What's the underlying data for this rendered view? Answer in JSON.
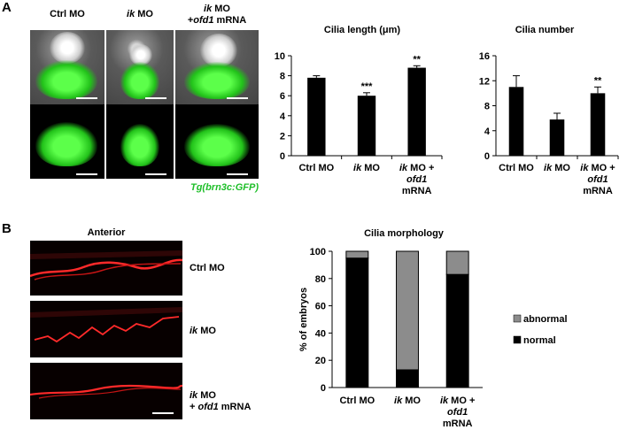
{
  "panel_a": {
    "letter": "A",
    "columns": [
      {
        "line1_italic": "",
        "line1_rest": "Ctrl MO",
        "line2_rest": "",
        "line2_italic": "",
        "line2_tail": ""
      },
      {
        "line1_italic": "ik",
        "line1_rest": " MO",
        "line2_rest": "",
        "line2_italic": "",
        "line2_tail": ""
      },
      {
        "line1_italic": "ik",
        "line1_rest": " MO",
        "line2_rest": "+",
        "line2_italic": "ofd1",
        "line2_tail": " mRNA"
      }
    ],
    "reporter": {
      "prefix": "Tg(brn3c",
      "suffix": ":GFP)"
    }
  },
  "panel_b": {
    "letter": "B",
    "micro_title": "Anterior",
    "rows": [
      {
        "line1_italic": "",
        "line1_rest": "Ctrl MO",
        "line2_rest": "",
        "line2_italic": "",
        "line2_tail": ""
      },
      {
        "line1_italic": "ik",
        "line1_rest": " MO",
        "line2_rest": "",
        "line2_italic": "",
        "line2_tail": ""
      },
      {
        "line1_italic": "ik",
        "line1_rest": " MO",
        "line2_rest": "+ ",
        "line2_italic": "ofd1",
        "line2_tail": " mRNA"
      }
    ]
  },
  "chart_data": [
    {
      "type": "bar",
      "title": "Cilia length (μm)",
      "ylim": [
        0,
        10
      ],
      "yticks": [
        0,
        2,
        4,
        6,
        8,
        10
      ],
      "categories": [
        "Ctrl MO",
        "ik MO",
        "ik MO + ofd1 mRNA"
      ],
      "values": [
        7.8,
        6.0,
        8.8
      ],
      "errors": [
        0.2,
        0.3,
        0.2
      ],
      "significance": [
        "",
        "***",
        "**"
      ],
      "bar_color": "#000000"
    },
    {
      "type": "bar",
      "title": "Cilia number",
      "ylim": [
        0,
        16
      ],
      "yticks": [
        0,
        4,
        8,
        12,
        16
      ],
      "categories": [
        "Ctrl MO",
        "ik MO",
        "ik MO + ofd1 mRNA"
      ],
      "values": [
        11.0,
        5.8,
        10.0
      ],
      "errors": [
        1.8,
        1.0,
        1.0
      ],
      "significance": [
        "",
        "",
        "**"
      ],
      "bar_color": "#000000"
    },
    {
      "type": "bar",
      "stacked": true,
      "title": "Cilia morphology",
      "ylabel": "% of  embryos",
      "ylim": [
        0,
        100
      ],
      "yticks": [
        0,
        20,
        40,
        60,
        80,
        100
      ],
      "categories": [
        "Ctrl MO",
        "ik MO",
        "ik MO + ofd1 mRNA"
      ],
      "series": [
        {
          "name": "normal",
          "values": [
            95,
            13,
            83
          ],
          "color": "#000000"
        },
        {
          "name": "abnormal",
          "values": [
            5,
            87,
            17
          ],
          "color": "#8c8c8c"
        }
      ],
      "legend_position": "right"
    }
  ],
  "category_labels": [
    {
      "line1_italic": "",
      "line1_rest": "Ctrl MO",
      "line2_italic": "",
      "line2_rest": "",
      "line3": ""
    },
    {
      "line1_italic": "ik",
      "line1_rest": " MO",
      "line2_italic": "",
      "line2_rest": "",
      "line3": ""
    },
    {
      "line1_italic": "ik",
      "line1_rest": " MO +",
      "line2_italic": "ofd1",
      "line2_rest": "",
      "line3": "mRNA"
    }
  ]
}
